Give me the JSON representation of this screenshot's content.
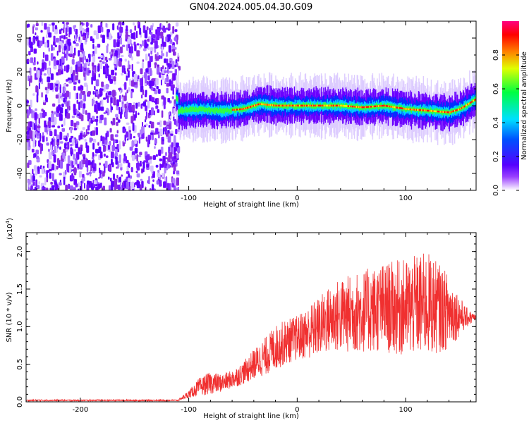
{
  "title": "GN04.2024.005.04.30.G09",
  "colors": {
    "snr_line": "#f03030",
    "colormap": [
      "#ffffff",
      "#7a00ff",
      "#0000ff",
      "#00e0ff",
      "#00ff40",
      "#ffff00",
      "#ff8000",
      "#ff0000",
      "#ff0080"
    ]
  },
  "chart_data": [
    {
      "type": "heatmap",
      "name": "spectrogram",
      "xlabel": "Height of straight line (km)",
      "ylabel": "Frequency (Hz)",
      "xlim": [
        -250,
        165
      ],
      "ylim": [
        -50,
        50
      ],
      "xticks": [
        -200,
        -100,
        0,
        100
      ],
      "xtick_labels": [
        "-200",
        "-100",
        "0",
        "100"
      ],
      "yticks": [
        -40,
        -20,
        0,
        20,
        40
      ],
      "ytick_labels": [
        "-40",
        "-20",
        "0",
        "20",
        "40"
      ],
      "noise_region_x": [
        -250,
        -110
      ],
      "signal_frequency_track": [
        {
          "x": -110,
          "y": -3
        },
        {
          "x": -90,
          "y": -2
        },
        {
          "x": -70,
          "y": -3
        },
        {
          "x": -50,
          "y": -2
        },
        {
          "x": -35,
          "y": 1
        },
        {
          "x": -20,
          "y": 0
        },
        {
          "x": 0,
          "y": 0
        },
        {
          "x": 20,
          "y": 0
        },
        {
          "x": 40,
          "y": 0
        },
        {
          "x": 60,
          "y": -1
        },
        {
          "x": 80,
          "y": 0
        },
        {
          "x": 100,
          "y": -2
        },
        {
          "x": 120,
          "y": -3
        },
        {
          "x": 140,
          "y": -4
        },
        {
          "x": 150,
          "y": -2
        },
        {
          "x": 165,
          "y": 4
        }
      ],
      "colorbar": {
        "label": "Normalized spectral amplitude",
        "range": [
          0.0,
          1.0
        ],
        "ticks": [
          0.0,
          0.2,
          0.4,
          0.6,
          0.8
        ],
        "tick_labels": [
          "0.0",
          "0.2",
          "0.4",
          "0.6",
          "0.8"
        ]
      }
    },
    {
      "type": "line",
      "name": "snr",
      "xlabel": "Height of straight line (km)",
      "ylabel": "SNR (10 * v/v)",
      "yscale_label": "(x10",
      "yscale_exponent": "4",
      "xlim": [
        -250,
        165
      ],
      "ylim": [
        0.0,
        2.25
      ],
      "xticks": [
        -200,
        -100,
        0,
        100
      ],
      "xtick_labels": [
        "-200",
        "-100",
        "0",
        "100"
      ],
      "yticks": [
        0.0,
        0.5,
        1.0,
        1.5,
        2.0
      ],
      "ytick_labels": [
        "0.0",
        "0.5",
        "1.0",
        "1.5",
        "2.0"
      ],
      "series": [
        {
          "name": "SNR",
          "envelope": [
            {
              "x": -250,
              "mean": 0.02,
              "spread": 0.01
            },
            {
              "x": -110,
              "mean": 0.02,
              "spread": 0.01
            },
            {
              "x": -100,
              "mean": 0.1,
              "spread": 0.05
            },
            {
              "x": -90,
              "mean": 0.2,
              "spread": 0.12
            },
            {
              "x": -80,
              "mean": 0.25,
              "spread": 0.15
            },
            {
              "x": -70,
              "mean": 0.25,
              "spread": 0.12
            },
            {
              "x": -60,
              "mean": 0.3,
              "spread": 0.12
            },
            {
              "x": -50,
              "mean": 0.38,
              "spread": 0.15
            },
            {
              "x": -40,
              "mean": 0.5,
              "spread": 0.2
            },
            {
              "x": -30,
              "mean": 0.6,
              "spread": 0.25
            },
            {
              "x": -20,
              "mean": 0.72,
              "spread": 0.3
            },
            {
              "x": -10,
              "mean": 0.8,
              "spread": 0.3
            },
            {
              "x": 0,
              "mean": 0.85,
              "spread": 0.3
            },
            {
              "x": 10,
              "mean": 0.92,
              "spread": 0.35
            },
            {
              "x": 20,
              "mean": 1.0,
              "spread": 0.4
            },
            {
              "x": 30,
              "mean": 1.1,
              "spread": 0.45
            },
            {
              "x": 40,
              "mean": 1.15,
              "spread": 0.5
            },
            {
              "x": 60,
              "mean": 1.2,
              "spread": 0.55
            },
            {
              "x": 80,
              "mean": 1.25,
              "spread": 0.6
            },
            {
              "x": 100,
              "mean": 1.25,
              "spread": 0.65
            },
            {
              "x": 120,
              "mean": 1.3,
              "spread": 0.7
            },
            {
              "x": 140,
              "mean": 1.2,
              "spread": 0.5
            },
            {
              "x": 155,
              "mean": 1.12,
              "spread": 0.15
            },
            {
              "x": 165,
              "mean": 1.12,
              "spread": 0.03
            }
          ]
        }
      ]
    }
  ]
}
